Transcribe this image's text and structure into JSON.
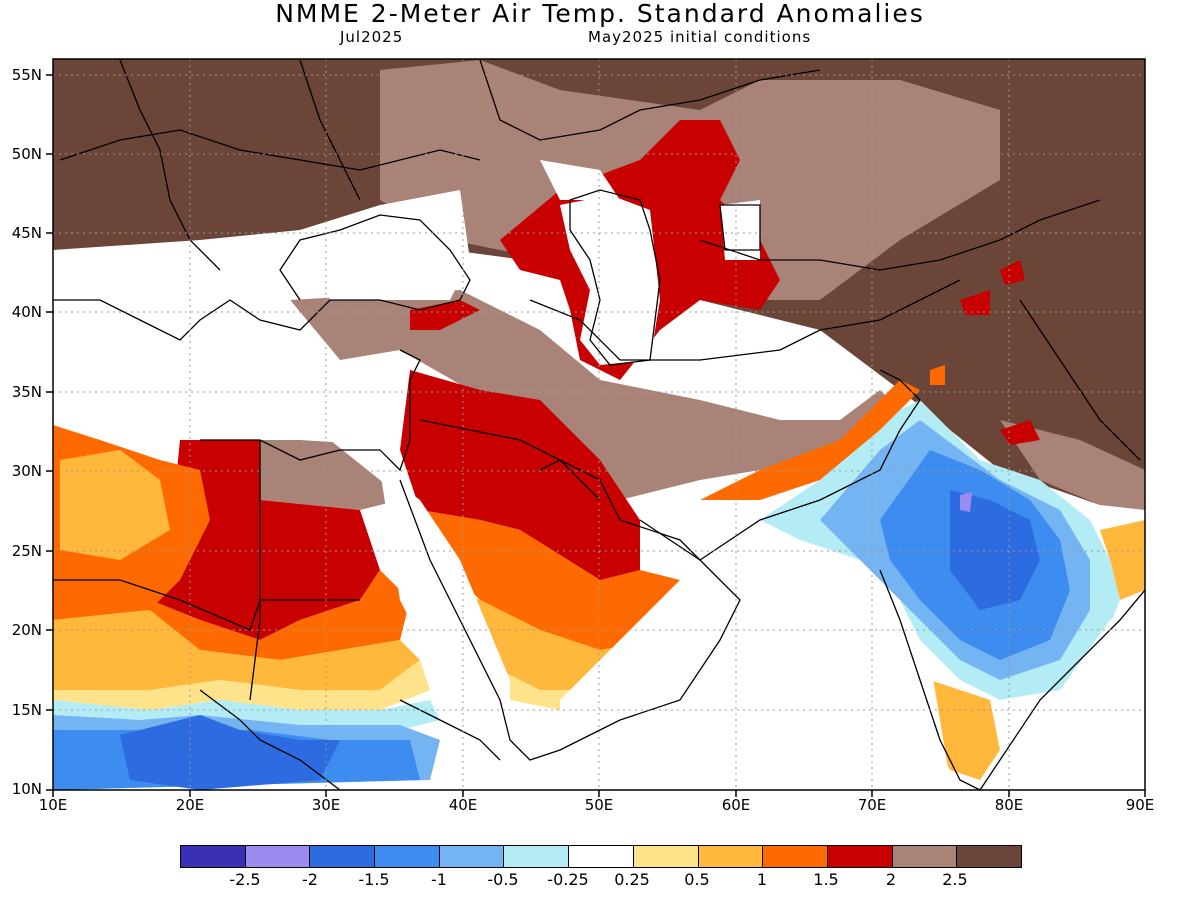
{
  "title": "NMME 2-Meter Air Temp. Standard Anomalies",
  "target_month": "Jul2025",
  "init_conditions": "May2025 initial conditions",
  "lat_labels": [
    "55N",
    "50N",
    "45N",
    "40N",
    "35N",
    "30N",
    "25N",
    "20N",
    "15N",
    "10N"
  ],
  "lon_labels": [
    "10E",
    "20E",
    "30E",
    "40E",
    "50E",
    "60E",
    "70E",
    "80E",
    "90E"
  ],
  "legend": {
    "colors": [
      "#3a2fb5",
      "#9c8cf0",
      "#2c6be0",
      "#3d8cef",
      "#75b4f3",
      "#b4ecf5",
      "#ffffff",
      "#ffe38a",
      "#ffb83c",
      "#ff6a00",
      "#c80000",
      "#a98378",
      "#6b4538"
    ],
    "labels": [
      "-2.5",
      "-2",
      "-1.5",
      "-1",
      "-0.5",
      "-0.25",
      "0.25",
      "0.5",
      "1",
      "1.5",
      "2",
      "2.5"
    ]
  },
  "map_extent": {
    "lon_min": 10,
    "lon_max": 90,
    "lat_min": 10,
    "lat_max": 56
  }
}
